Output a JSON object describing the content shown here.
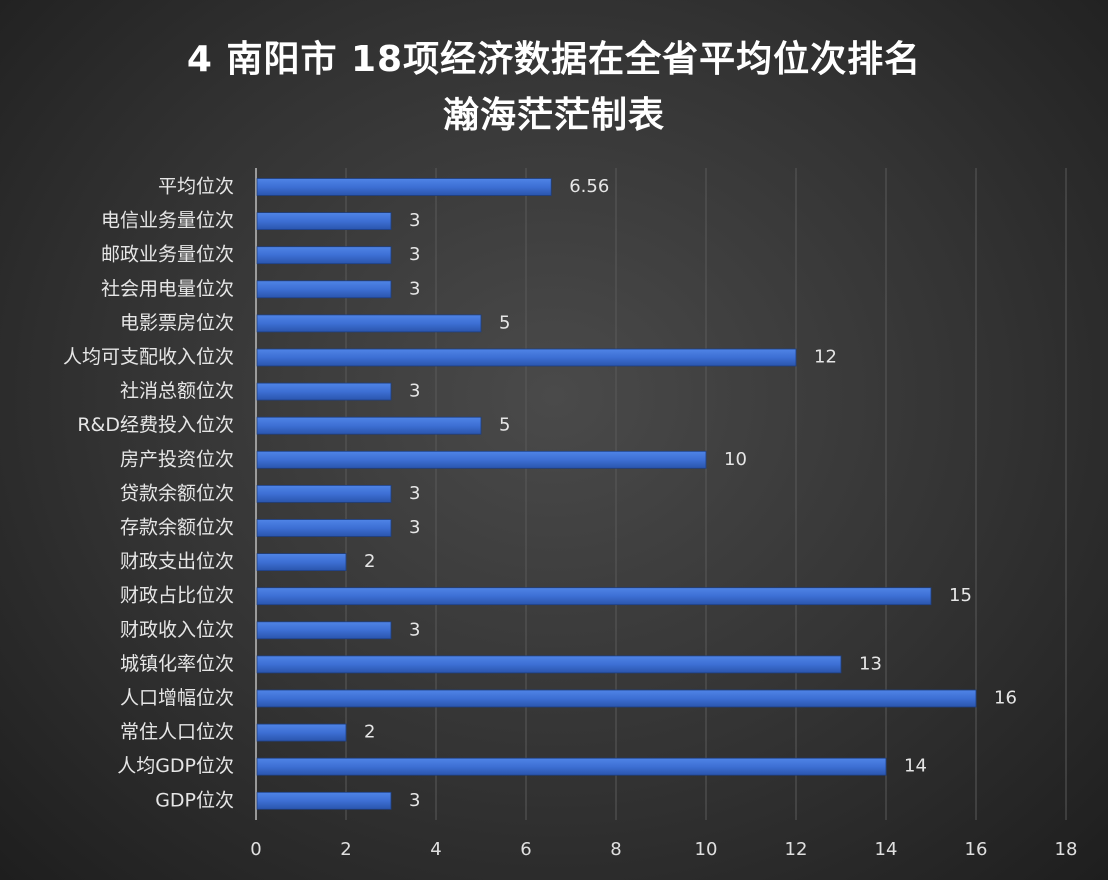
{
  "chart_data": {
    "type": "bar",
    "orientation": "horizontal",
    "title": "4 南阳市 18项经济数据在全省平均位次排名",
    "subtitle": "瀚海茫茫制表",
    "categories": [
      "平均位次",
      "电信业务量位次",
      "邮政业务量位次",
      "社会用电量位次",
      "电影票房位次",
      "人均可支配收入位次",
      "社消总额位次",
      "R&D经费投入位次",
      "房产投资位次",
      "贷款余额位次",
      "存款余额位次",
      "财政支出位次",
      "财政占比位次",
      "财政收入位次",
      "城镇化率位次",
      "人口增幅位次",
      "常住人口位次",
      "人均GDP位次",
      "GDP位次"
    ],
    "values": [
      6.56,
      3,
      3,
      3,
      5,
      12,
      3,
      5,
      10,
      3,
      3,
      2,
      15,
      3,
      13,
      16,
      2,
      14,
      3
    ],
    "value_labels": [
      "6.56",
      "3",
      "3",
      "3",
      "5",
      "12",
      "3",
      "5",
      "10",
      "3",
      "3",
      "2",
      "15",
      "3",
      "13",
      "16",
      "2",
      "14",
      "3"
    ],
    "xlim": [
      0,
      18
    ],
    "xticks": [
      "0",
      "2",
      "4",
      "6",
      "8",
      "10",
      "12",
      "14",
      "16",
      "18"
    ],
    "grid": true,
    "bar_color": "#3d6fd4",
    "background": "#3a3a3a"
  }
}
